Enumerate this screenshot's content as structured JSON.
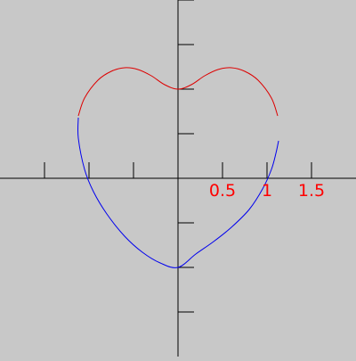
{
  "chart_data": {
    "type": "line",
    "title": "",
    "xlabel": "",
    "ylabel": "",
    "xlim": [
      -2,
      2
    ],
    "ylim": [
      -2,
      2
    ],
    "grid": false,
    "x_ticks": [
      -1.5,
      -1,
      -0.5,
      0,
      0.5,
      1,
      1.5
    ],
    "y_ticks": [
      -1.5,
      -1,
      -0.5,
      0.5,
      1,
      1.5,
      2
    ],
    "x_tick_labels": [
      {
        "value": 0.5,
        "label": "0.5"
      },
      {
        "value": 1,
        "label": "1"
      },
      {
        "value": 1.5,
        "label": "1.5"
      }
    ],
    "series": [
      {
        "color": "#dd0000",
        "points": [
          [
            -1.12,
            0.7
          ],
          [
            -1.05,
            0.9
          ],
          [
            -0.9,
            1.1
          ],
          [
            -0.75,
            1.2
          ],
          [
            -0.6,
            1.24
          ],
          [
            -0.45,
            1.22
          ],
          [
            -0.3,
            1.15
          ],
          [
            -0.15,
            1.05
          ],
          [
            0,
            1.0
          ],
          [
            0.15,
            1.05
          ],
          [
            0.3,
            1.15
          ],
          [
            0.45,
            1.22
          ],
          [
            0.6,
            1.24
          ],
          [
            0.75,
            1.2
          ],
          [
            0.9,
            1.1
          ],
          [
            1.05,
            0.9
          ],
          [
            1.12,
            0.7
          ]
        ]
      },
      {
        "color": "#0000ee",
        "points": [
          [
            -1.12,
            0.68
          ],
          [
            -1.12,
            0.45
          ],
          [
            -1.05,
            0.1
          ],
          [
            -0.95,
            -0.15
          ],
          [
            -0.8,
            -0.4
          ],
          [
            -0.6,
            -0.65
          ],
          [
            -0.4,
            -0.83
          ],
          [
            -0.2,
            -0.95
          ],
          [
            0,
            -1.0
          ],
          [
            0.2,
            -0.85
          ],
          [
            0.4,
            -0.71
          ],
          [
            0.6,
            -0.55
          ],
          [
            0.8,
            -0.35
          ],
          [
            0.95,
            -0.12
          ],
          [
            1.05,
            0.1
          ],
          [
            1.1,
            0.28
          ],
          [
            1.13,
            0.42
          ]
        ]
      }
    ]
  }
}
